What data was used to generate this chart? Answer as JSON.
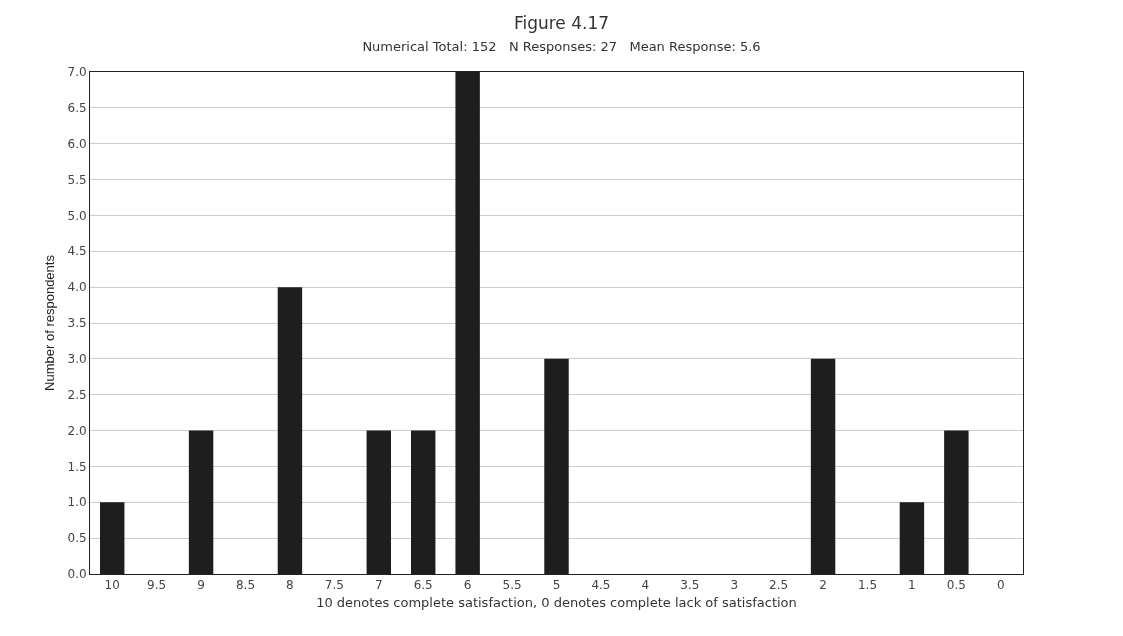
{
  "chart_data": {
    "type": "bar",
    "title": "Figure 4.17",
    "subtitle": "Numerical Total: 152   N Responses: 27   Mean Response: 5.6",
    "xlabel": "10 denotes complete satisfaction, 0 denotes complete lack of satisfaction",
    "ylabel": "Number of respondents",
    "categories": [
      "10",
      "9.5",
      "9",
      "8.5",
      "8",
      "7.5",
      "7",
      "6.5",
      "6",
      "5.5",
      "5",
      "4.5",
      "4",
      "3.5",
      "3",
      "2.5",
      "2",
      "1.5",
      "1",
      "0.5",
      "0"
    ],
    "values": [
      1,
      0,
      2,
      0,
      4,
      0,
      2,
      2,
      7,
      0,
      3,
      0,
      0,
      0,
      0,
      0,
      3,
      0,
      1,
      2,
      0
    ],
    "color": "#1e1e1e",
    "ylim": [
      0,
      7
    ],
    "yticks": [
      {
        "value": 0,
        "label": "0.0"
      },
      {
        "value": 0.5,
        "label": "0.5"
      },
      {
        "value": 1,
        "label": "1.0"
      },
      {
        "value": 1.5,
        "label": "1.5"
      },
      {
        "value": 2,
        "label": "2.0"
      },
      {
        "value": 2.5,
        "label": "2.5"
      },
      {
        "value": 3,
        "label": "3.0"
      },
      {
        "value": 3.5,
        "label": "3.5"
      },
      {
        "value": 4,
        "label": "4.0"
      },
      {
        "value": 4.5,
        "label": "4.5"
      },
      {
        "value": 5,
        "label": "5.0"
      },
      {
        "value": 5.5,
        "label": "5.5"
      },
      {
        "value": 6,
        "label": "6.0"
      },
      {
        "value": 6.5,
        "label": "6.5"
      },
      {
        "value": 7,
        "label": "7.0"
      }
    ],
    "grid": "y"
  }
}
